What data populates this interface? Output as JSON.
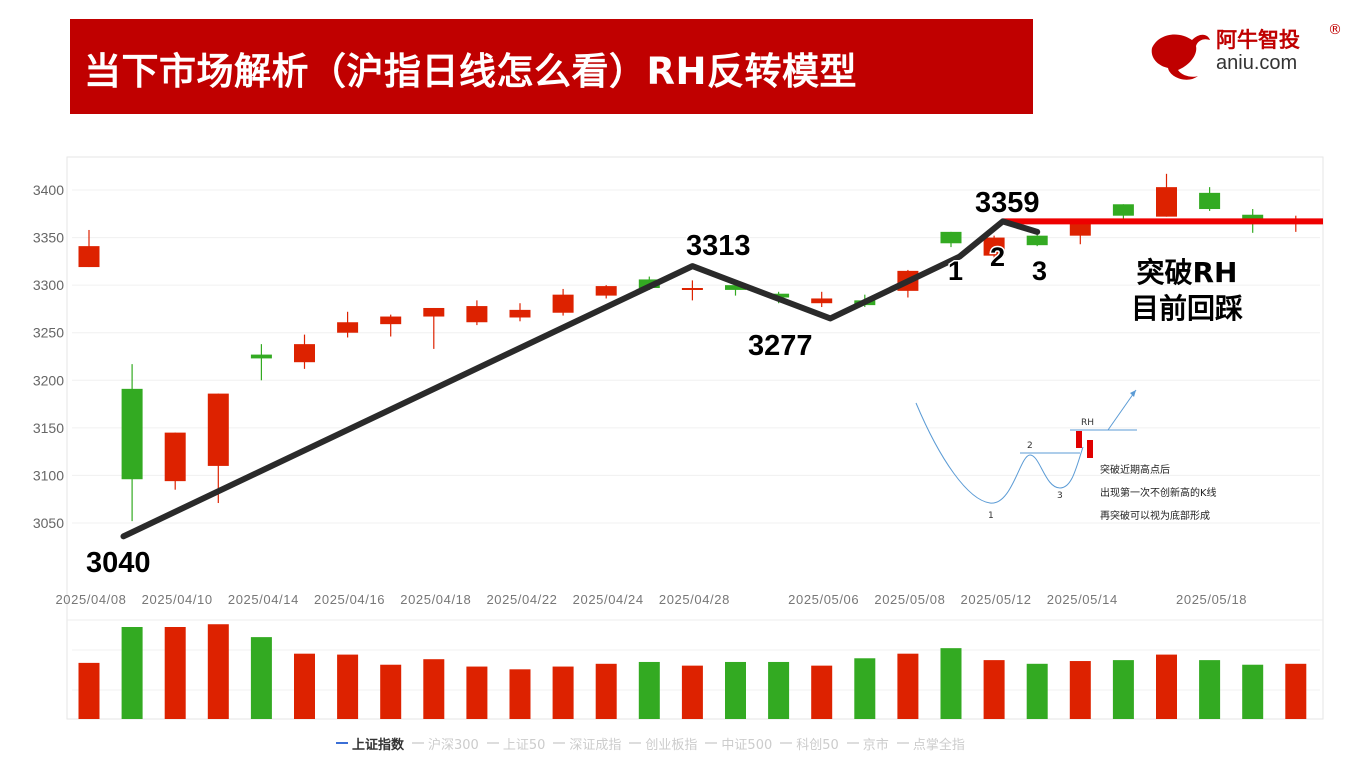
{
  "header": {
    "title": "当下市场解析（沪指日线怎么看）RH反转模型",
    "logo_cn": "阿牛智投",
    "logo_reg": "®",
    "logo_en": "aniu.com"
  },
  "colors": {
    "up": "#dd2200",
    "down": "#33aa22",
    "title_bg": "#c00000",
    "trend_line": "#2a2a2a",
    "rh_line": "#ee0000"
  },
  "chart_data": {
    "type": "candlestick",
    "y_ticks": [
      3050,
      3100,
      3150,
      3200,
      3250,
      3300,
      3350,
      3400
    ],
    "ylim": [
      3010,
      3420
    ],
    "x_tick_labels": [
      "2025/04/08",
      "2025/04/10",
      "2025/04/14",
      "2025/04/16",
      "2025/04/18",
      "2025/04/22",
      "2025/04/24",
      "2025/04/28",
      "2025/05/06",
      "2025/05/08",
      "2025/05/12",
      "2025/05/14",
      "2025/05/18"
    ],
    "candles": [
      {
        "o": 3319,
        "c": 3341,
        "h": 3358,
        "l": 3319
      },
      {
        "o": 3191,
        "c": 3096,
        "h": 3217,
        "l": 3052
      },
      {
        "o": 3094,
        "c": 3145,
        "h": 3145,
        "l": 3085
      },
      {
        "o": 3110,
        "c": 3186,
        "h": 3186,
        "l": 3071
      },
      {
        "o": 3227,
        "c": 3223,
        "h": 3238,
        "l": 3200
      },
      {
        "o": 3219,
        "c": 3238,
        "h": 3248,
        "l": 3212
      },
      {
        "o": 3250,
        "c": 3261,
        "h": 3272,
        "l": 3245
      },
      {
        "o": 3259,
        "c": 3267,
        "h": 3269,
        "l": 3246
      },
      {
        "o": 3267,
        "c": 3276,
        "h": 3276,
        "l": 3233
      },
      {
        "o": 3261,
        "c": 3278,
        "h": 3284,
        "l": 3258
      },
      {
        "o": 3266,
        "c": 3274,
        "h": 3281,
        "l": 3262
      },
      {
        "o": 3271,
        "c": 3290,
        "h": 3296,
        "l": 3268
      },
      {
        "o": 3289,
        "c": 3299,
        "h": 3300,
        "l": 3286
      },
      {
        "o": 3306,
        "c": 3297,
        "h": 3309,
        "l": 3295
      },
      {
        "o": 3295,
        "c": 3297,
        "h": 3305,
        "l": 3284
      },
      {
        "o": 3300,
        "c": 3295,
        "h": 3302,
        "l": 3289
      },
      {
        "o": 3291,
        "c": 3287,
        "h": 3293,
        "l": 3281
      },
      {
        "o": 3281,
        "c": 3286,
        "h": 3293,
        "l": 3277
      },
      {
        "o": 3284,
        "c": 3279,
        "h": 3290,
        "l": 3277
      },
      {
        "o": 3294,
        "c": 3315,
        "h": 3316,
        "l": 3287
      },
      {
        "o": 3356,
        "c": 3344,
        "h": 3356,
        "l": 3340
      },
      {
        "o": 3331,
        "c": 3350,
        "h": 3352,
        "l": 3329
      },
      {
        "o": 3352,
        "c": 3342,
        "h": 3356,
        "l": 3341
      },
      {
        "o": 3352,
        "c": 3367,
        "h": 3367,
        "l": 3343
      },
      {
        "o": 3385,
        "c": 3373,
        "h": 3385,
        "l": 3370
      },
      {
        "o": 3372,
        "c": 3403,
        "h": 3417,
        "l": 3372
      },
      {
        "o": 3397,
        "c": 3380,
        "h": 3403,
        "l": 3378
      },
      {
        "o": 3374,
        "c": 3370,
        "h": 3380,
        "l": 3355
      },
      {
        "o": 3366,
        "c": 3368,
        "h": 3373,
        "l": 3356
      }
    ],
    "volumes": [
      0.61,
      1.0,
      1.0,
      1.03,
      0.89,
      0.71,
      0.7,
      0.59,
      0.65,
      0.57,
      0.54,
      0.57,
      0.6,
      0.62,
      0.58,
      0.62,
      0.62,
      0.58,
      0.66,
      0.71,
      0.77,
      0.64,
      0.6,
      0.63,
      0.64,
      0.7,
      0.64,
      0.59,
      0.6
    ],
    "trend_points": [
      {
        "i": 0.8,
        "v": 3036
      },
      {
        "i": 14.0,
        "v": 3320
      },
      {
        "i": 17.2,
        "v": 3265
      },
      {
        "i": 20.2,
        "v": 3330
      },
      {
        "i": 21.2,
        "v": 3367
      },
      {
        "i": 22.0,
        "v": 3356
      }
    ],
    "price_labels": [
      "3040",
      "3313",
      "3277",
      "3359"
    ],
    "rh_level": 3367,
    "rh_from_index": 21.2,
    "wave_labels": [
      "1",
      "2",
      "3"
    ]
  },
  "annotation": {
    "rh_text": [
      "突破RH",
      "目前回踩"
    ],
    "diagram": {
      "rh_label": "RH",
      "point_labels": [
        "1",
        "2",
        "3"
      ],
      "notes": [
        "突破近期高点后",
        "出现第一次不创新高的K线",
        "再突破可以视为底部形成"
      ]
    }
  },
  "tabs": [
    {
      "label": "上证指数",
      "active": true
    },
    {
      "label": "沪深300",
      "active": false
    },
    {
      "label": "上证50",
      "active": false
    },
    {
      "label": "深证成指",
      "active": false
    },
    {
      "label": "创业板指",
      "active": false
    },
    {
      "label": "中证500",
      "active": false
    },
    {
      "label": "科创50",
      "active": false
    },
    {
      "label": "京市",
      "active": false
    },
    {
      "label": "点掌全指",
      "active": false
    }
  ]
}
